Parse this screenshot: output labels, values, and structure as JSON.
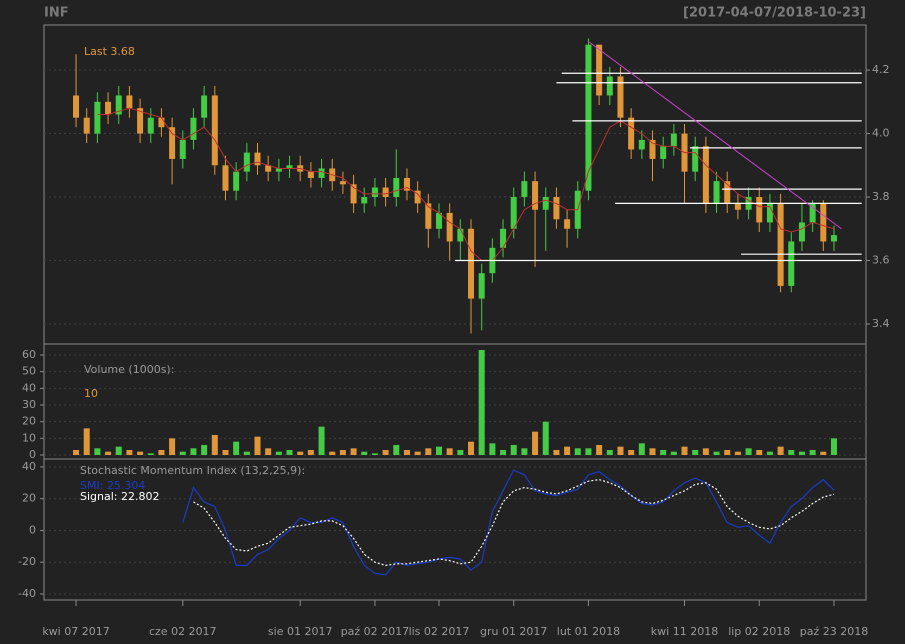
{
  "title": "INF",
  "date_range": "[2017-04-07/2018-10-23]",
  "chart_data": [
    {
      "type": "candlestick",
      "xlim": [
        -3,
        74
      ],
      "xticks": [
        {
          "value": 0,
          "label": "kwi 07 2017"
        },
        {
          "value": 10,
          "label": "cze 02 2017"
        },
        {
          "value": 21,
          "label": "sie 01 2017"
        },
        {
          "value": 28,
          "label": "paź 02 2017"
        },
        {
          "value": 34,
          "label": "lis 02 2017"
        },
        {
          "value": 41,
          "label": "gru 01 2017"
        },
        {
          "value": 48,
          "label": "lut 01 2018"
        },
        {
          "value": 57,
          "label": "kwi 11 2018"
        },
        {
          "value": 64,
          "label": "lip 02 2018"
        },
        {
          "value": 71,
          "label": "paź 23 2018"
        }
      ],
      "ylim": [
        3.337,
        4.342
      ],
      "yticks": [
        3.4,
        3.6,
        3.8,
        {
          "value": 4,
          "label": "4.0"
        },
        4.2
      ],
      "grid": true,
      "up_color": "#44cc44",
      "down_color": "#e0973a",
      "last_label": "Last",
      "open": [
        4.12,
        4.05,
        4.0,
        4.1,
        4.06,
        4.12,
        4.08,
        4.0,
        4.05,
        4.02,
        3.92,
        3.98,
        4.05,
        4.12,
        3.9,
        3.82,
        3.88,
        3.94,
        3.9,
        3.88,
        3.89,
        3.9,
        3.88,
        3.86,
        3.89,
        3.85,
        3.84,
        3.78,
        3.8,
        3.83,
        3.8,
        3.86,
        3.82,
        3.78,
        3.7,
        3.75,
        3.66,
        3.7,
        3.48,
        3.56,
        3.64,
        3.7,
        3.8,
        3.85,
        3.76,
        3.8,
        3.73,
        3.7,
        3.82,
        4.28,
        4.12,
        4.18,
        4.05,
        3.95,
        3.98,
        3.92,
        3.96,
        4.0,
        3.88,
        3.96,
        3.78,
        3.85,
        3.78,
        3.76,
        3.8,
        3.72,
        3.78,
        3.52,
        3.66,
        3.72,
        3.78,
        3.66
      ],
      "high": [
        4.25,
        4.08,
        4.13,
        4.13,
        4.15,
        4.15,
        4.11,
        4.08,
        4.08,
        4.05,
        4.01,
        4.08,
        4.15,
        4.15,
        3.93,
        3.91,
        3.97,
        3.97,
        3.93,
        3.92,
        3.93,
        3.93,
        3.91,
        3.92,
        3.92,
        3.88,
        3.87,
        3.83,
        3.86,
        3.86,
        3.95,
        3.89,
        3.85,
        3.81,
        3.78,
        3.78,
        3.73,
        3.73,
        3.59,
        3.67,
        3.73,
        3.83,
        3.88,
        3.88,
        3.83,
        3.83,
        3.76,
        3.85,
        4.3,
        4.28,
        4.21,
        4.21,
        4.08,
        4.01,
        4.01,
        3.99,
        4.03,
        4.03,
        3.99,
        3.99,
        3.88,
        3.88,
        3.81,
        3.83,
        3.83,
        3.81,
        3.81,
        3.69,
        3.78,
        3.79,
        3.79,
        3.71
      ],
      "low": [
        4.02,
        3.97,
        3.97,
        4.03,
        4.03,
        4.05,
        3.97,
        3.97,
        3.99,
        3.84,
        3.89,
        3.95,
        4.02,
        3.87,
        3.79,
        3.79,
        3.85,
        3.87,
        3.85,
        3.85,
        3.86,
        3.85,
        3.83,
        3.83,
        3.82,
        3.81,
        3.75,
        3.75,
        3.77,
        3.77,
        3.77,
        3.79,
        3.75,
        3.64,
        3.67,
        3.6,
        3.6,
        3.37,
        3.38,
        3.53,
        3.61,
        3.67,
        3.77,
        3.58,
        3.63,
        3.7,
        3.64,
        3.67,
        3.79,
        4.09,
        4.09,
        4.02,
        3.92,
        3.92,
        3.85,
        3.89,
        3.93,
        3.78,
        3.85,
        3.75,
        3.75,
        3.75,
        3.73,
        3.73,
        3.69,
        3.69,
        3.5,
        3.5,
        3.63,
        3.69,
        3.63,
        3.63
      ],
      "close": [
        4.05,
        4.0,
        4.1,
        4.06,
        4.12,
        4.08,
        4.0,
        4.05,
        4.02,
        3.92,
        3.98,
        4.05,
        4.12,
        3.9,
        3.82,
        3.88,
        3.94,
        3.9,
        3.88,
        3.89,
        3.9,
        3.88,
        3.86,
        3.89,
        3.85,
        3.84,
        3.78,
        3.8,
        3.83,
        3.8,
        3.86,
        3.82,
        3.78,
        3.7,
        3.75,
        3.66,
        3.7,
        3.48,
        3.56,
        3.64,
        3.7,
        3.8,
        3.85,
        3.76,
        3.8,
        3.73,
        3.7,
        3.82,
        4.28,
        4.12,
        4.18,
        4.05,
        3.95,
        3.98,
        3.92,
        3.96,
        4.0,
        3.88,
        3.96,
        3.78,
        3.85,
        3.78,
        3.76,
        3.8,
        3.72,
        3.78,
        3.52,
        3.66,
        3.72,
        3.78,
        3.66,
        3.68
      ],
      "ma": {
        "color": "#c03030",
        "values": [
          null,
          null,
          4.06,
          4.06,
          4.07,
          4.08,
          4.07,
          4.06,
          4.05,
          4.0,
          3.98,
          4.0,
          4.02,
          3.98,
          3.92,
          3.88,
          3.9,
          3.91,
          3.9,
          3.89,
          3.89,
          3.89,
          3.88,
          3.88,
          3.87,
          3.86,
          3.83,
          3.81,
          3.81,
          3.81,
          3.82,
          3.83,
          3.81,
          3.77,
          3.75,
          3.72,
          3.7,
          3.63,
          3.6,
          3.6,
          3.64,
          3.7,
          3.76,
          3.78,
          3.79,
          3.78,
          3.76,
          3.76,
          3.88,
          3.95,
          4.02,
          4.04,
          4.02,
          4.0,
          3.97,
          3.96,
          3.96,
          3.94,
          3.94,
          3.9,
          3.87,
          3.84,
          3.81,
          3.79,
          3.77,
          3.77,
          3.7,
          3.69,
          3.7,
          3.72,
          3.71,
          3.7
        ]
      },
      "level_color": "#ffffff",
      "levels": [
        {
          "value": 4.19,
          "from": 45.5,
          "to": 73.6
        },
        {
          "value": 4.16,
          "from": 45,
          "to": 73.6
        },
        {
          "value": 4.04,
          "from": 46.5,
          "to": 73.6
        },
        {
          "value": 3.955,
          "from": 57.5,
          "to": 73.6
        },
        {
          "value": 3.825,
          "from": 60.5,
          "to": 73.6
        },
        {
          "value": 3.78,
          "from": 50.5,
          "to": 73.6
        },
        {
          "value": 3.62,
          "from": 62.3,
          "to": 73.6
        },
        {
          "value": 3.6,
          "from": 35.5,
          "to": 73.6
        }
      ],
      "trendline": {
        "color": "#cc44cc",
        "x": [
          48,
          71.7
        ],
        "y": [
          4.29,
          3.7
        ]
      }
    },
    {
      "type": "bar",
      "label": "Volume (1000s):",
      "ylim": [
        -2.4,
        66.6
      ],
      "yticks": [
        0,
        10,
        20,
        30,
        40,
        50,
        60
      ],
      "grid": true,
      "values": [
        3,
        16,
        4,
        2,
        5,
        3,
        2,
        1,
        3,
        10,
        2,
        4,
        6,
        12,
        3,
        8,
        2,
        11,
        4,
        2,
        3,
        2,
        3,
        17,
        2,
        3,
        4,
        2,
        1,
        3,
        6,
        3,
        2,
        4,
        5,
        4,
        3,
        8,
        63,
        7,
        3,
        6,
        4,
        14,
        20,
        3,
        5,
        4,
        4,
        6,
        3,
        5,
        3,
        7,
        4,
        3,
        2,
        5,
        3,
        4,
        2,
        3,
        2,
        4,
        3,
        2,
        5,
        3,
        2,
        3,
        2,
        10
      ]
    },
    {
      "type": "line",
      "label": "Stochastic Momentum Index (13,2,25,9):",
      "ylim": [
        -43.8,
        45
      ],
      "yticks": [
        -40,
        -20,
        0,
        20,
        40
      ],
      "grid": true,
      "series": [
        {
          "name": "SMI:",
          "color": "#1a3cc8",
          "dash": false,
          "values": [
            null,
            null,
            null,
            null,
            null,
            null,
            null,
            null,
            null,
            null,
            5,
            27,
            18,
            15,
            0,
            -22,
            -22,
            -15,
            -12,
            -5,
            0,
            8,
            5,
            5,
            8,
            5,
            -10,
            -22,
            -27,
            -28,
            -20,
            -22,
            -21,
            -20,
            -18,
            -17,
            -18,
            -25,
            -20,
            12,
            25,
            38,
            35,
            25,
            23,
            22,
            24,
            26,
            35,
            37,
            32,
            28,
            22,
            17,
            16,
            18,
            25,
            30,
            33,
            30,
            18,
            5,
            2,
            3,
            -3,
            -8,
            5,
            15,
            20,
            27,
            32,
            25.304
          ]
        },
        {
          "name": "Signal:",
          "color": "#ffffff",
          "dash": true,
          "values": [
            null,
            null,
            null,
            null,
            null,
            null,
            null,
            null,
            null,
            null,
            null,
            18,
            14,
            5,
            -5,
            -12,
            -13,
            -10,
            -8,
            -3,
            2,
            3,
            4,
            6,
            6,
            3,
            -5,
            -15,
            -20,
            -22,
            -21,
            -21,
            -20,
            -19,
            -18,
            -19,
            -21,
            -20,
            -10,
            3,
            18,
            25,
            27,
            26,
            24,
            23,
            25,
            28,
            31,
            32,
            30,
            27,
            22,
            18,
            17,
            19,
            22,
            25,
            29,
            30,
            26,
            15,
            9,
            5,
            2,
            1,
            3,
            8,
            12,
            17,
            21,
            22.802
          ]
        }
      ]
    }
  ]
}
